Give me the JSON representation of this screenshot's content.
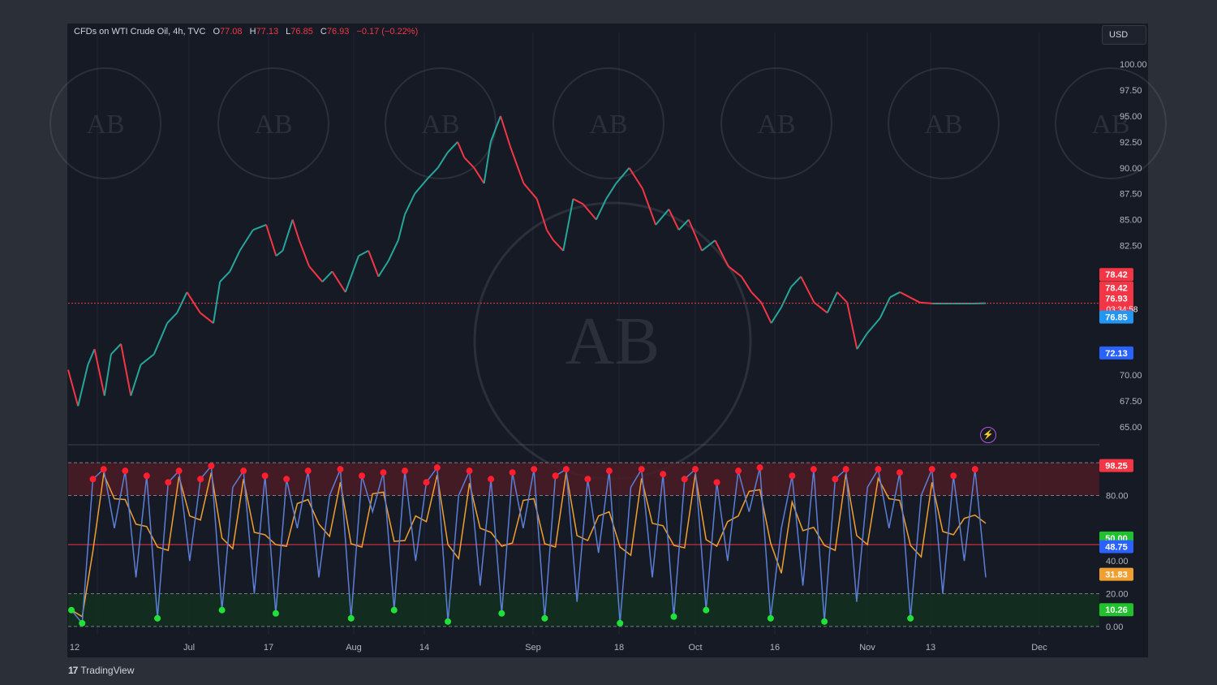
{
  "header": {
    "symbol": "CFDs on WTI Crude Oil, 4h, TVC",
    "open_label": "O",
    "open": "77.08",
    "high_label": "H",
    "high": "77.13",
    "low_label": "L",
    "low": "76.85",
    "close_label": "C",
    "close": "76.93",
    "change": "−0.17 (−0.22%)"
  },
  "currency_button": "USD",
  "footer_brand": "TradingView",
  "watermark_text": "AB",
  "colors": {
    "bg": "#161a25",
    "up": "#26a69a",
    "down": "#f23645",
    "stoch_k": "#5b7fd6",
    "stoch_d": "#f0a030",
    "ob_zone": "#4a1c24",
    "os_zone": "#12301f",
    "res": "#f23645",
    "sup": "#2962ff"
  },
  "chart_data": [
    {
      "type": "line",
      "title": "CFDs on WTI Crude Oil, 4h, TVC",
      "ylabel": "USD",
      "ylim": [
        63.5,
        101.5
      ],
      "y_ticks": [
        "100.00",
        "97.50",
        "95.00",
        "92.50",
        "90.00",
        "87.50",
        "85.00",
        "82.50",
        "70.00",
        "67.50",
        "65.00"
      ],
      "x_ticks": [
        "12",
        "Jul",
        "17",
        "Aug",
        "14",
        "Sep",
        "18",
        "Oct",
        "16",
        "Nov",
        "13",
        "Dec"
      ],
      "price_badges": [
        {
          "label": "78.42",
          "value": 79.7,
          "color": "#f23645"
        },
        {
          "label": "78.42",
          "value": 78.42,
          "color": "#f23645"
        },
        {
          "label": "76.93",
          "sub": "03:34:58",
          "value": 76.93,
          "color": "#f23645"
        },
        {
          "label": "76.85",
          "value": 75.6,
          "color": "#2196f3"
        },
        {
          "label": "72.13",
          "value": 72.13,
          "color": "#2962ff"
        }
      ],
      "series": [
        {
          "x": [
            0,
            3,
            6,
            8,
            11,
            13,
            16,
            19,
            22,
            26,
            30,
            33,
            36,
            40,
            44,
            46,
            49,
            52,
            56,
            60,
            63,
            65,
            68,
            70,
            73,
            77,
            80,
            84,
            88,
            91,
            94,
            97,
            100,
            102,
            105,
            109,
            112,
            115,
            118,
            120,
            123,
            126,
            128,
            131,
            134,
            138,
            142,
            145,
            147,
            150,
            153,
            156,
            160,
            163,
            166,
            170,
            174,
            178,
            182,
            185,
            188,
            192,
            196,
            200,
            204,
            207,
            210,
            213,
            216,
            219,
            222,
            226,
            230,
            233,
            236,
            239,
            242,
            246,
            249,
            252,
            255,
            258,
            262,
            265,
            268,
            271,
            274,
            278
          ],
          "values": [
            70.5,
            67,
            71,
            72.5,
            68,
            72,
            73,
            68,
            71,
            72,
            75,
            76,
            78,
            76,
            75,
            79,
            80,
            82,
            84,
            84.5,
            81.5,
            82,
            85,
            83,
            80.5,
            79,
            80,
            78,
            81.5,
            82,
            79.5,
            81,
            83,
            85.5,
            87.5,
            89,
            90,
            91.5,
            92.5,
            91,
            90,
            88.5,
            92.5,
            95,
            92,
            88.5,
            87,
            84,
            83,
            82,
            87,
            86.5,
            85,
            87,
            88.5,
            90,
            88,
            84.5,
            86,
            84,
            85,
            82,
            83,
            80.5,
            79.5,
            78,
            77,
            75,
            76.5,
            78.5,
            79.5,
            77,
            76,
            78,
            77,
            72.5,
            74,
            75.5,
            77.5,
            78,
            77.5,
            77,
            76.9,
            76.9,
            76.9,
            76.9,
            76.9,
            76.93
          ]
        }
      ]
    },
    {
      "type": "line",
      "title": "",
      "ylim": [
        -5,
        105
      ],
      "y_ticks": [
        "80.00",
        "40.00",
        "20.00",
        "0.00"
      ],
      "levels": [
        100,
        80,
        50,
        20,
        0
      ],
      "value_badges": [
        {
          "label": "98.25",
          "value": 98.25,
          "color": "#f23645"
        },
        {
          "label": "50.00",
          "value": 54,
          "color": "#1fc22d"
        },
        {
          "label": "48.75",
          "value": 48.75,
          "color": "#2962ff"
        },
        {
          "label": "31.83",
          "value": 31.83,
          "color": "#f0a030"
        },
        {
          "label": "10.26",
          "value": 10.26,
          "color": "#1fc22d"
        }
      ],
      "series": [
        {
          "name": "",
          "values": [
            10,
            2,
            90,
            96,
            60,
            95,
            30,
            92,
            5,
            88,
            95,
            40,
            90,
            98,
            10,
            85,
            95,
            20,
            92,
            8,
            90,
            60,
            95,
            30,
            80,
            96,
            5,
            92,
            70,
            94,
            10,
            95,
            40,
            88,
            97,
            3,
            80,
            95,
            25,
            90,
            8,
            94,
            60,
            96,
            5,
            92,
            96,
            15,
            90,
            45,
            95,
            2,
            85,
            96,
            30,
            93,
            6,
            90,
            96,
            10,
            88,
            40,
            95,
            70,
            97,
            5,
            60,
            92,
            25,
            96,
            3,
            90,
            96,
            15,
            85,
            96,
            60,
            94,
            5,
            80,
            96,
            20,
            92,
            40,
            96,
            30
          ]
        }
      ]
    }
  ]
}
